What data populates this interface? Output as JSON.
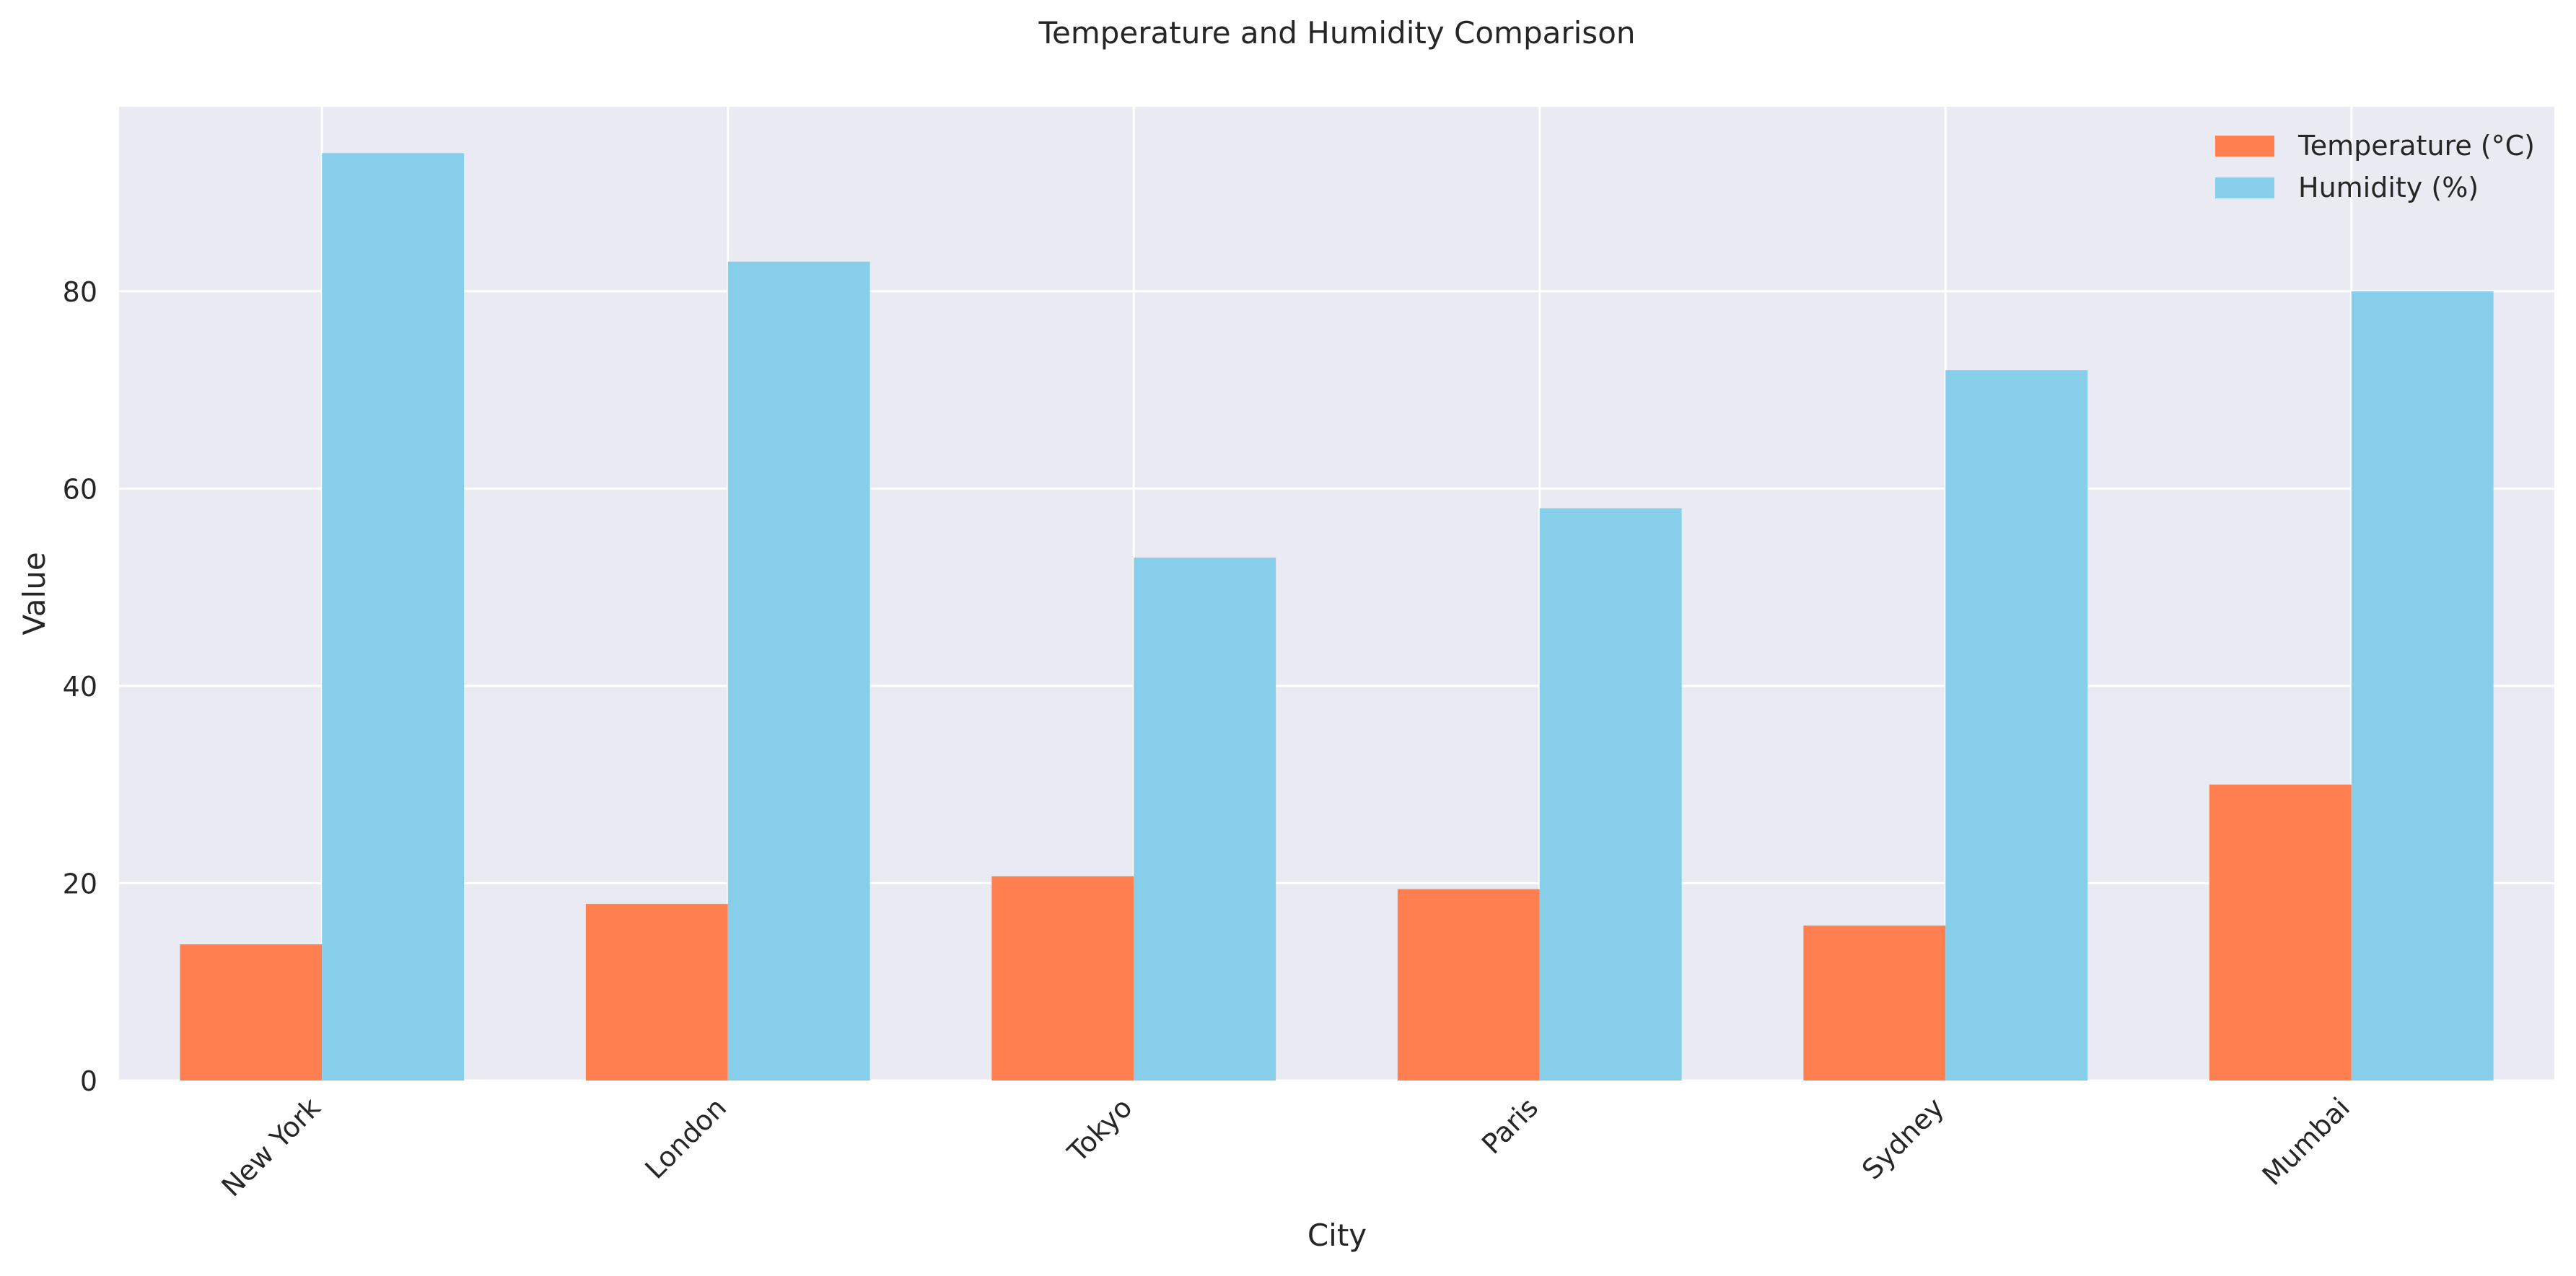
{
  "chart_data": {
    "type": "bar",
    "title": "Temperature and Humidity Comparison",
    "xlabel": "City",
    "ylabel": "Value",
    "categories": [
      "New York",
      "London",
      "Tokyo",
      "Paris",
      "Sydney",
      "Mumbai"
    ],
    "series": [
      {
        "name": "Temperature (°C)",
        "color": "#FF7F50",
        "values": [
          13.8,
          17.9,
          20.7,
          19.4,
          15.7,
          30.0
        ]
      },
      {
        "name": "Humidity (%)",
        "color": "#87CEEB",
        "values": [
          94,
          83,
          53,
          58,
          72,
          80
        ]
      }
    ],
    "ylim": [
      0,
      98.7
    ],
    "yticks": [
      0,
      20,
      40,
      60,
      80
    ],
    "grid": true,
    "legend_position": "top-right",
    "background_color": "#EAEAF2",
    "grid_color": "#FFFFFF"
  }
}
